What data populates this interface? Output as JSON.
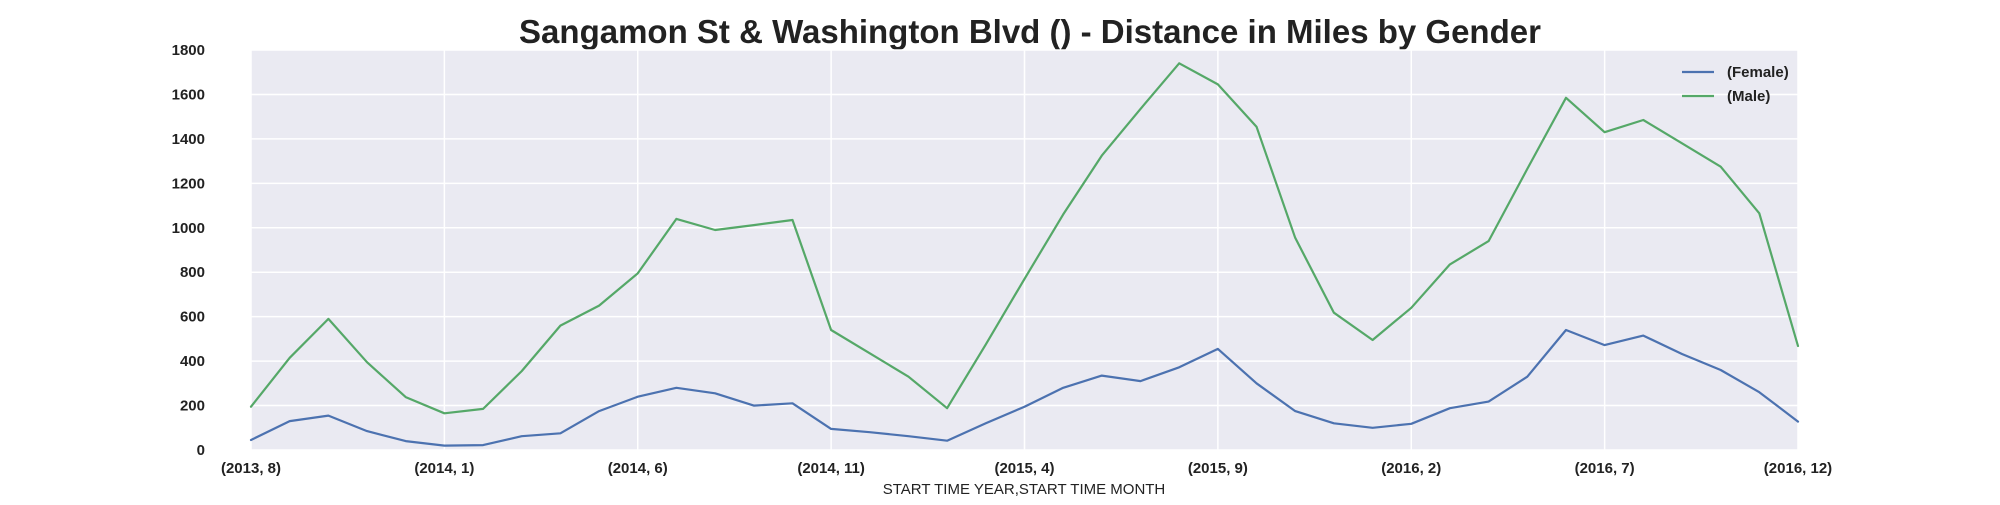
{
  "chart_data": {
    "type": "line",
    "title": "Sangamon St & Washington Blvd () - Distance in Miles by Gender",
    "xlabel": "START TIME YEAR,START TIME MONTH",
    "ylabel": "",
    "ylim": [
      0,
      1800
    ],
    "y_ticks": [
      0,
      200,
      400,
      600,
      800,
      1000,
      1200,
      1400,
      1600,
      1800
    ],
    "x_tick_labels": [
      "(2013, 8)",
      "(2014, 1)",
      "(2014, 6)",
      "(2014, 11)",
      "(2015, 4)",
      "(2015, 9)",
      "(2016, 2)",
      "(2016, 7)",
      "(2016, 12)"
    ],
    "x_tick_index": [
      0,
      5,
      10,
      15,
      20,
      25,
      30,
      35,
      40
    ],
    "categories": [
      "(2013, 8)",
      "(2013, 9)",
      "(2013, 10)",
      "(2013, 11)",
      "(2013, 12)",
      "(2014, 1)",
      "(2014, 2)",
      "(2014, 3)",
      "(2014, 4)",
      "(2014, 5)",
      "(2014, 6)",
      "(2014, 7)",
      "(2014, 8)",
      "(2014, 9)",
      "(2014, 10)",
      "(2014, 11)",
      "(2014, 12)",
      "(2015, 1)",
      "(2015, 2)",
      "(2015, 3)",
      "(2015, 4)",
      "(2015, 5)",
      "(2015, 6)",
      "(2015, 7)",
      "(2015, 8)",
      "(2015, 9)",
      "(2015, 10)",
      "(2015, 11)",
      "(2015, 12)",
      "(2016, 1)",
      "(2016, 2)",
      "(2016, 3)",
      "(2016, 4)",
      "(2016, 5)",
      "(2016, 6)",
      "(2016, 7)",
      "(2016, 8)",
      "(2016, 9)",
      "(2016, 10)",
      "(2016, 11)",
      "(2016, 12)"
    ],
    "series": [
      {
        "name": "(Female)",
        "color": "#4c72b0",
        "values": [
          45,
          130,
          155,
          85,
          40,
          20,
          22,
          62,
          75,
          175,
          240,
          280,
          255,
          200,
          210,
          95,
          80,
          62,
          42,
          120,
          195,
          280,
          335,
          310,
          372,
          455,
          300,
          175,
          120,
          100,
          118,
          188,
          218,
          330,
          540,
          472,
          515,
          432,
          360,
          260,
          128
        ]
      },
      {
        "name": "(Male)",
        "color": "#55a868",
        "values": [
          195,
          415,
          590,
          395,
          238,
          165,
          185,
          355,
          560,
          650,
          795,
          1040,
          990,
          1012,
          1035,
          540,
          435,
          330,
          188,
          475,
          770,
          1060,
          1325,
          1535,
          1740,
          1645,
          1455,
          955,
          618,
          495,
          640,
          835,
          940,
          1265,
          1585,
          1430,
          1485,
          1380,
          1275,
          1065,
          468
        ]
      }
    ],
    "grid": true,
    "legend_placement": "top-right"
  }
}
